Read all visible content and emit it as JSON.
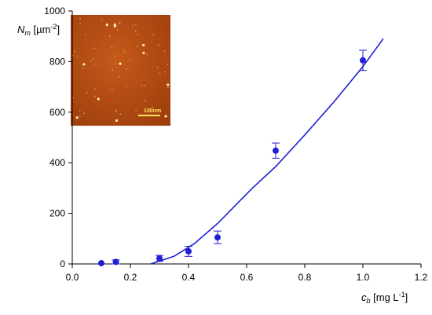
{
  "chart_data": {
    "type": "scatter",
    "xlim": [
      0.0,
      1.2
    ],
    "ylim": [
      0,
      1000
    ],
    "x_ticks": [
      "0.0",
      "0.2",
      "0.4",
      "0.6",
      "0.8",
      "1.0",
      "1.2"
    ],
    "y_ticks": [
      "0",
      "200",
      "400",
      "600",
      "800",
      "1000"
    ],
    "xlabel": {
      "main": "c",
      "sub": "b",
      "unit": " [mg L",
      "sup": "-1",
      "close": "]"
    },
    "ylabel": {
      "main": "N",
      "sub": "m",
      "unit": " [µm",
      "sup": "-2",
      "close": "]"
    },
    "grid": false,
    "colors": {
      "points": "#1f1fd6",
      "fit_line": "#1f1fd6",
      "axis": "#000000"
    },
    "series": [
      {
        "kind": "points_with_error_bars",
        "x": [
          0.1,
          0.15,
          0.3,
          0.4,
          0.5,
          0.7,
          1.0
        ],
        "y": [
          3,
          8,
          22,
          50,
          105,
          448,
          805
        ],
        "error": [
          0,
          8,
          12,
          20,
          25,
          30,
          40
        ]
      },
      {
        "kind": "line",
        "x": [
          0.27,
          0.35,
          0.42,
          0.5,
          0.56,
          0.62,
          0.7,
          0.8,
          0.9,
          1.0,
          1.07
        ],
        "y": [
          0,
          30,
          80,
          160,
          230,
          300,
          385,
          510,
          640,
          780,
          890
        ]
      }
    ],
    "inset": {
      "description_icon": "afm-image",
      "scale_bar_label": "100nm"
    }
  }
}
